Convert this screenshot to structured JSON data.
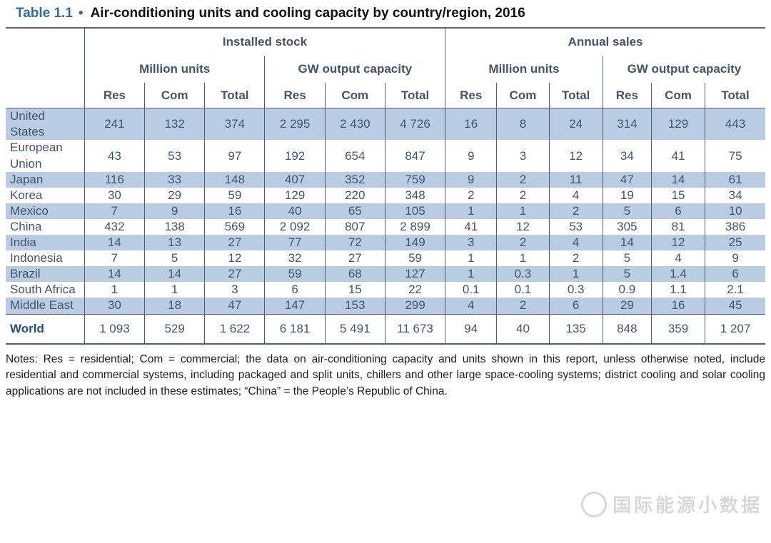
{
  "title": {
    "label": "Table 1.1",
    "bullet": "•",
    "text": "Air-conditioning units and cooling capacity by country/region, 2016"
  },
  "table": {
    "groups": [
      "Installed stock",
      "Annual sales"
    ],
    "subgroups": [
      "Million units",
      "GW output capacity"
    ],
    "measures": [
      "Res",
      "Com",
      "Total"
    ],
    "rows": [
      {
        "country": "United States",
        "values": [
          "241",
          "132",
          "374",
          "2 295",
          "2 430",
          "4 726",
          "16",
          "8",
          "24",
          "314",
          "129",
          "443"
        ]
      },
      {
        "country": "European Union",
        "values": [
          "43",
          "53",
          "97",
          "192",
          "654",
          "847",
          "9",
          "3",
          "12",
          "34",
          "41",
          "75"
        ]
      },
      {
        "country": "Japan",
        "values": [
          "116",
          "33",
          "148",
          "407",
          "352",
          "759",
          "9",
          "2",
          "11",
          "47",
          "14",
          "61"
        ]
      },
      {
        "country": "Korea",
        "values": [
          "30",
          "29",
          "59",
          "129",
          "220",
          "348",
          "2",
          "2",
          "4",
          "19",
          "15",
          "34"
        ]
      },
      {
        "country": "Mexico",
        "values": [
          "7",
          "9",
          "16",
          "40",
          "65",
          "105",
          "1",
          "1",
          "2",
          "5",
          "6",
          "10"
        ]
      },
      {
        "country": "China",
        "values": [
          "432",
          "138",
          "569",
          "2 092",
          "807",
          "2 899",
          "41",
          "12",
          "53",
          "305",
          "81",
          "386"
        ]
      },
      {
        "country": "India",
        "values": [
          "14",
          "13",
          "27",
          "77",
          "72",
          "149",
          "3",
          "2",
          "4",
          "14",
          "12",
          "25"
        ]
      },
      {
        "country": "Indonesia",
        "values": [
          "7",
          "5",
          "12",
          "32",
          "27",
          "59",
          "1",
          "1",
          "2",
          "5",
          "4",
          "9"
        ]
      },
      {
        "country": "Brazil",
        "values": [
          "14",
          "14",
          "27",
          "59",
          "68",
          "127",
          "1",
          "0.3",
          "1",
          "5",
          "1.4",
          "6"
        ]
      },
      {
        "country": "South Africa",
        "values": [
          "1",
          "1",
          "3",
          "6",
          "15",
          "22",
          "0.1",
          "0.1",
          "0.3",
          "0.9",
          "1.1",
          "2.1"
        ]
      },
      {
        "country": "Middle East",
        "values": [
          "30",
          "18",
          "47",
          "147",
          "153",
          "299",
          "4",
          "2",
          "6",
          "29",
          "16",
          "45"
        ]
      },
      {
        "country": "World",
        "values": [
          "1 093",
          "529",
          "1 622",
          "6 181",
          "5 491",
          "11 673",
          "94",
          "40",
          "135",
          "848",
          "359",
          "1 207"
        ],
        "is_total": true
      }
    ]
  },
  "notes": "Notes: Res = residential; Com = commercial; the data on air-conditioning capacity and units shown in this report, unless otherwise noted, include residential and commercial systems, including packaged and split units, chillers and other large space-cooling systems; district cooling and solar cooling applications are not included in these estimates; “China” = the People’s Republic of China.",
  "watermark": "国际能源小数据",
  "colors": {
    "accent_blue": "#2e6da4",
    "header_navy": "#1f4e79",
    "row_blue": "#b8cce4",
    "line": "#55606b",
    "cell_text": "#44546a"
  }
}
